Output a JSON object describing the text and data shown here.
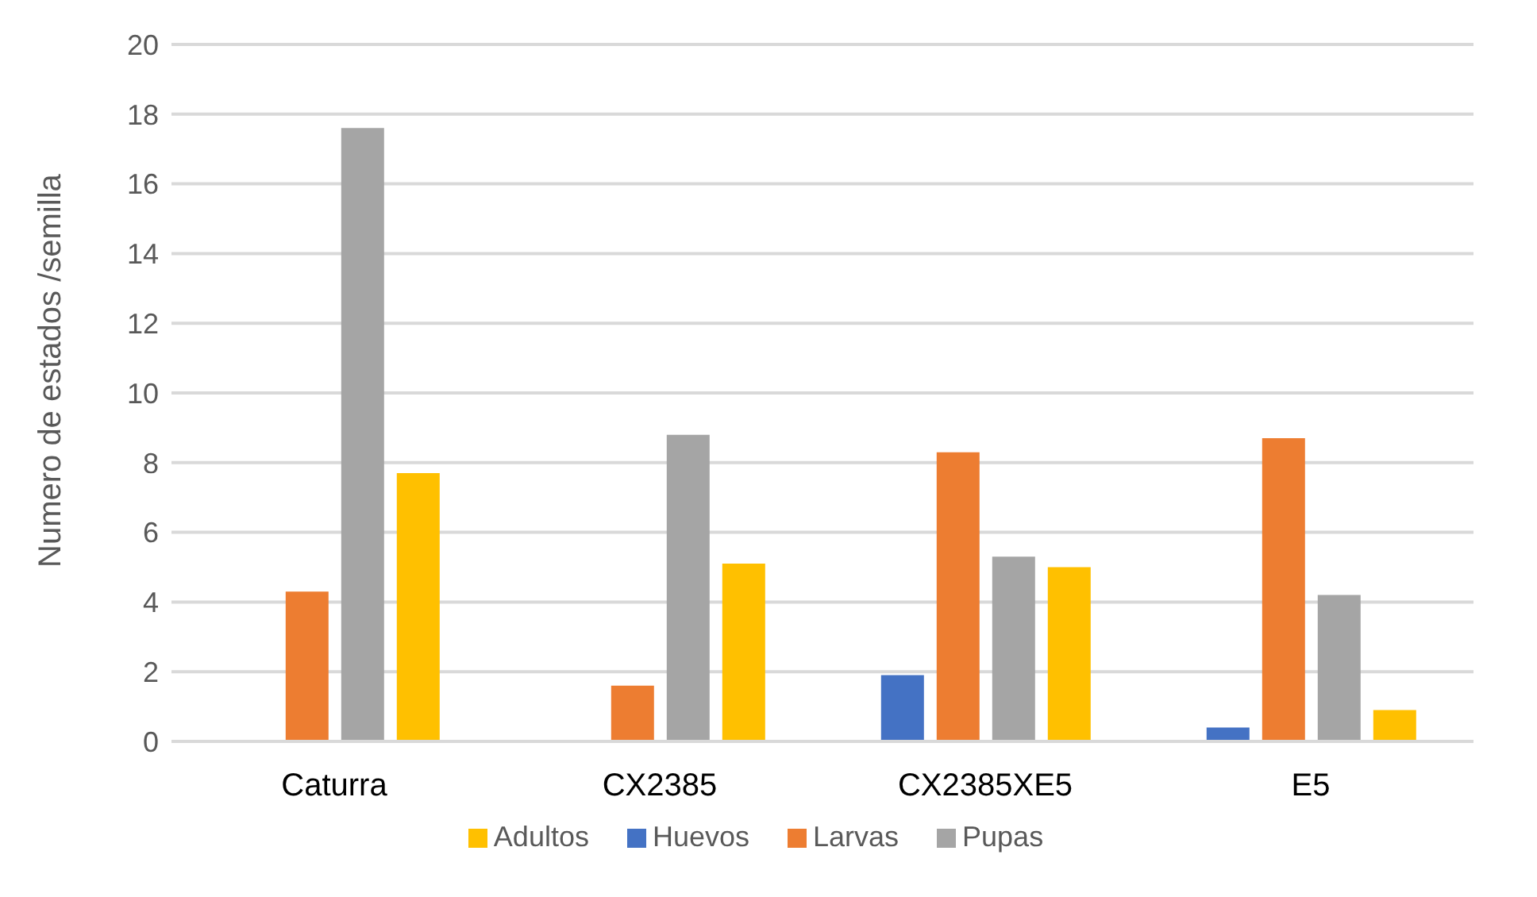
{
  "chart_data": {
    "type": "bar",
    "ylabel": "Numero de estados /semilla",
    "categories": [
      "Caturra",
      "CX2385",
      "CX2385XE5",
      "E5"
    ],
    "series": [
      {
        "name": "Huevos",
        "color": "#4472c4",
        "values": [
          0,
          0,
          1.9,
          0.4
        ]
      },
      {
        "name": "Larvas",
        "color": "#ed7d31",
        "values": [
          4.3,
          1.6,
          8.3,
          8.7
        ]
      },
      {
        "name": "Pupas",
        "color": "#a5a5a5",
        "values": [
          17.6,
          8.8,
          5.3,
          4.2
        ]
      },
      {
        "name": "Adultos",
        "color": "#ffc000",
        "values": [
          7.7,
          5.1,
          5.0,
          0.9
        ]
      }
    ],
    "ylim": [
      0,
      20
    ],
    "yticks": [
      0,
      2,
      4,
      6,
      8,
      10,
      12,
      14,
      16,
      18,
      20
    ],
    "grid": "y",
    "legend": "bottom"
  }
}
